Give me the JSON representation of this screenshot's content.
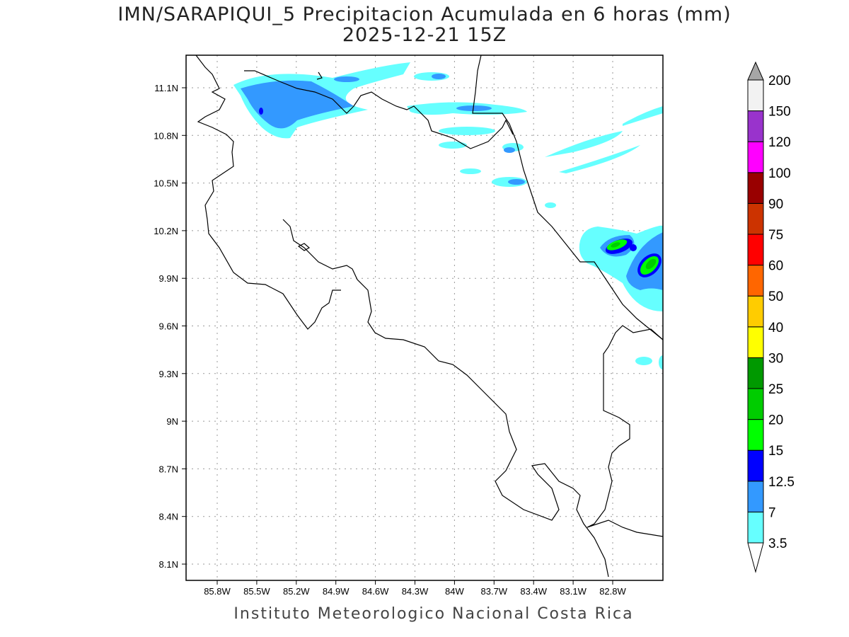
{
  "title": "IMN/SARAPIQUI_5 Precipitacion Acumulada en 6 horas (mm)",
  "subtitle": "2025-12-21 15Z",
  "credit": "Instituto Meteorologico Nacional Costa Rica",
  "map": {
    "lon_ticks": [
      "85.8W",
      "85.5W",
      "85.2W",
      "84.9W",
      "84.6W",
      "84.3W",
      "84W",
      "83.7W",
      "83.4W",
      "83.1W",
      "82.8W"
    ],
    "lat_ticks": [
      "11.1N",
      "10.8N",
      "10.5N",
      "10.2N",
      "9.9N",
      "9.6N",
      "9.3N",
      "9N",
      "8.7N",
      "8.4N",
      "8.1N"
    ]
  },
  "colorbar": {
    "labels": [
      "3.5",
      "7",
      "12.5",
      "15",
      "20",
      "25",
      "30",
      "40",
      "50",
      "60",
      "75",
      "90",
      "100",
      "120",
      "150",
      "200"
    ],
    "colors": [
      "#66ffff",
      "#3399ff",
      "#0000ff",
      "#00ff00",
      "#00cc00",
      "#009900",
      "#ffff00",
      "#ffcc00",
      "#ff6600",
      "#ff0000",
      "#cc3300",
      "#990000",
      "#ff00ff",
      "#9933cc",
      "#f2f2f2"
    ],
    "over_color": "#a6a6a6",
    "under_color": "#ffffff"
  }
}
